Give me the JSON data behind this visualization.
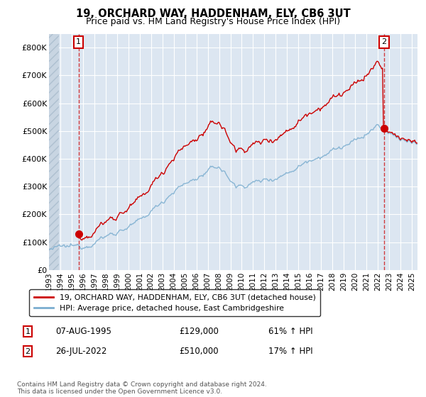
{
  "title": "19, ORCHARD WAY, HADDENHAM, ELY, CB6 3UT",
  "subtitle": "Price paid vs. HM Land Registry's House Price Index (HPI)",
  "legend_line1": "19, ORCHARD WAY, HADDENHAM, ELY, CB6 3UT (detached house)",
  "legend_line2": "HPI: Average price, detached house, East Cambridgeshire",
  "annotation1": {
    "label": "1",
    "date_str": "07-AUG-1995",
    "price": "£129,000",
    "hpi": "61% ↑ HPI",
    "sale_year": 1995.6,
    "sale_price": 129000
  },
  "annotation2": {
    "label": "2",
    "date_str": "26-JUL-2022",
    "price": "£510,000",
    "hpi": "17% ↑ HPI",
    "sale_year": 2022.55,
    "sale_price": 510000
  },
  "footer": "Contains HM Land Registry data © Crown copyright and database right 2024.\nThis data is licensed under the Open Government Licence v3.0.",
  "ylim": [
    0,
    850000
  ],
  "yticks": [
    0,
    100000,
    200000,
    300000,
    400000,
    500000,
    600000,
    700000,
    800000
  ],
  "ytick_labels": [
    "£0",
    "£100K",
    "£200K",
    "£300K",
    "£400K",
    "£500K",
    "£600K",
    "£700K",
    "£800K"
  ],
  "plot_bg_color": "#dce6f1",
  "fig_bg_color": "#ffffff",
  "grid_color": "#ffffff",
  "red_color": "#cc0000",
  "blue_color": "#7aadcf",
  "start_year": 1993,
  "end_year": 2025
}
